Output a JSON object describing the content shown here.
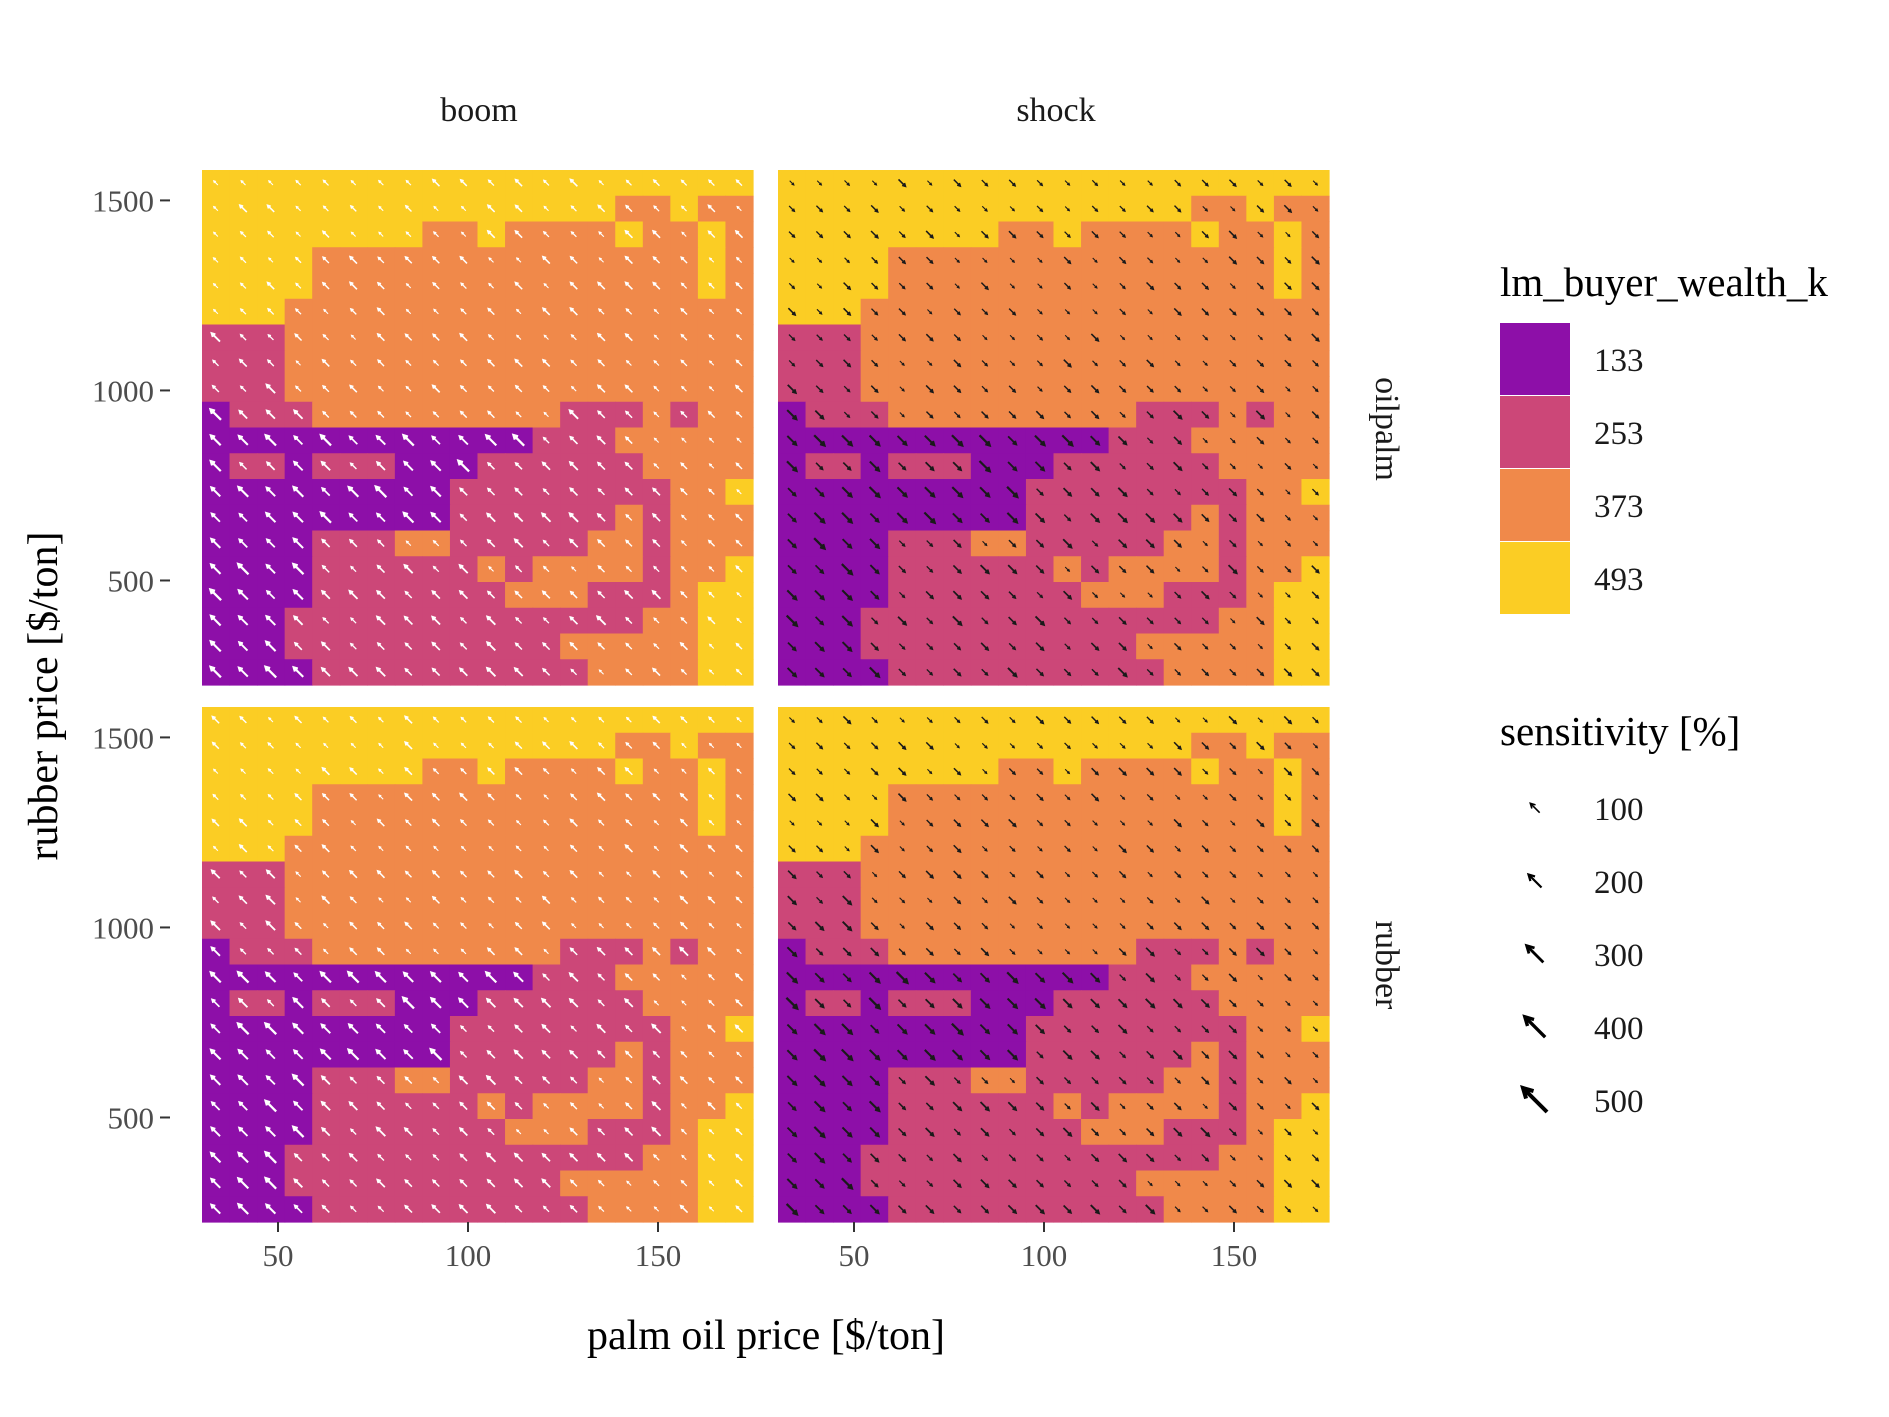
{
  "chart_data": {
    "type": "heatmap",
    "facet_columns": [
      "boom",
      "shock"
    ],
    "facet_rows": [
      "oilpalm",
      "rubber"
    ],
    "xlabel": "palm oil price [$/ton]",
    "ylabel": "rubber price [$/ton]",
    "xlim": [
      30,
      175
    ],
    "ylim": [
      225,
      1580
    ],
    "x_ticks": [
      50,
      100,
      150
    ],
    "y_ticks": [
      500,
      1000,
      1500
    ],
    "grid": 20,
    "fill_legend": {
      "title": "lm_buyer_wealth_k",
      "levels": [
        133,
        253,
        373,
        493
      ],
      "colors": [
        "#8d0fa8",
        "#cc4778",
        "#f0894a",
        "#fbcd24"
      ]
    },
    "size_legend": {
      "title": "sensitivity [%]",
      "levels": [
        100,
        200,
        300,
        400,
        500
      ]
    },
    "fill_grid": [
      "00001111111111222233",
      "00011111111112222233",
      "00011111111111112233",
      "00001111111222111233",
      "00001111112122221223",
      "00001112211111221222",
      "00000000011111121222",
      "00000000011111111223",
      "01101110001111112222",
      "00000000000011122222",
      "01112222222221112122",
      "11122222222222222222",
      "11122222222222222222",
      "11122222222222222222",
      "33322222222222222222",
      "33332222222222222232",
      "33332222222222222232",
      "33333333223222232232",
      "33333333333333322322",
      "33333333333333333333"
    ],
    "arrow_color": {
      "boom-oilpalm": "white",
      "boom-rubber": "white",
      "shock-oilpalm": "black",
      "shock-rubber": "black"
    }
  }
}
